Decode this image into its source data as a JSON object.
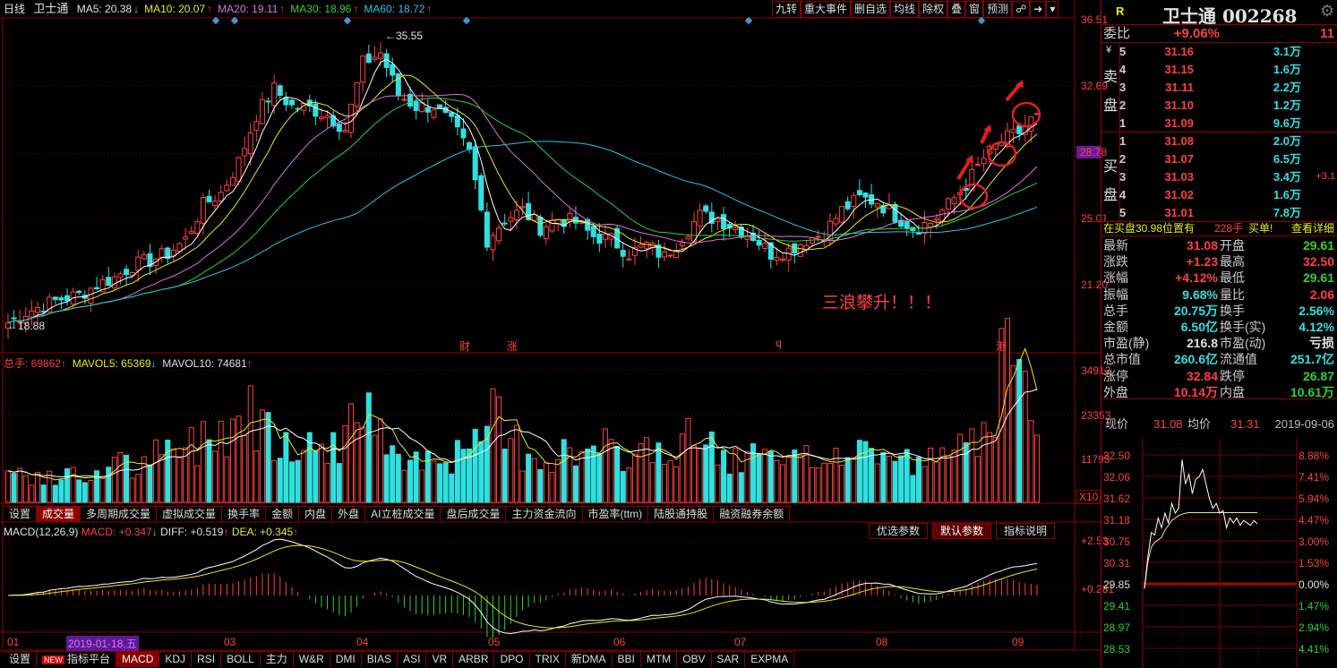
{
  "header": {
    "period": "日线",
    "stock_name": "卫士通",
    "ma": [
      {
        "label": "MA5: 20.38",
        "trend": "down",
        "color": "#e0e0e0"
      },
      {
        "label": "MA10: 20.07",
        "trend": "up",
        "color": "#e8e820"
      },
      {
        "label": "MA20: 19.11",
        "trend": "up",
        "color": "#e070e0"
      },
      {
        "label": "MA30: 18.96",
        "trend": "up",
        "color": "#30d030"
      },
      {
        "label": "MA60: 18.72",
        "trend": "up",
        "color": "#30c0e0"
      }
    ],
    "toolbar": [
      "九转",
      "重大事件",
      "删自选",
      "均线",
      "除权",
      "叠",
      "窗",
      "预测"
    ]
  },
  "main_chart": {
    "price_axis": [
      "36.51",
      "32.69",
      "28.78",
      "25.01",
      "21.20"
    ],
    "current_price_tag": "28.78",
    "high_label": "35.55",
    "low_label": "18.88",
    "annotation": "三浪攀升！！！",
    "event_markers": [
      "财",
      "涨",
      "q",
      "港"
    ],
    "date_axis": [
      "01",
      "2019-01-18,五",
      "03",
      "04",
      "05",
      "06",
      "07",
      "08",
      "09"
    ],
    "closes": [
      19.0,
      19.6,
      20.0,
      20.4,
      20.6,
      21.2,
      21.6,
      22.3,
      22.6,
      23.0,
      23.8,
      25.8,
      26.5,
      28.3,
      31.0,
      32.5,
      31.5,
      31.4,
      31.0,
      30.2,
      34.0,
      34.6,
      32.2,
      31.5,
      31.5,
      30.5,
      28.8,
      23.8,
      25.0,
      25.5,
      24.5,
      25.0,
      24.8,
      24.0,
      23.8,
      23.0,
      23.5,
      22.8,
      24.0,
      25.2,
      25.0,
      24.5,
      24.0,
      23.0,
      23.2,
      23.8,
      24.2,
      25.5,
      26.2,
      26.0,
      25.2,
      24.5,
      24.8,
      25.8,
      27.0,
      28.5,
      29.5,
      30.0,
      31.08
    ],
    "colors": {
      "up": "#ff4040",
      "down": "#30e0e0",
      "ma5": "#ffffff",
      "ma10": "#e8e820",
      "ma20": "#e070e0",
      "ma30": "#30d030",
      "ma60": "#30c0e0"
    }
  },
  "volume": {
    "total_label": "总手: 69862",
    "mavol5_label": "MAVOL5: 65369",
    "mavol10_label": "MAVOL10: 74681",
    "axis": [
      "34912",
      "23353",
      "11795"
    ],
    "unit": "X10",
    "tabs": [
      "设置",
      "成交量",
      "多周期成交量",
      "虚拟成交量",
      "换手率",
      "金额",
      "内盘",
      "外盘",
      "AI立桩成交量",
      "盘后成交量",
      "主力资金流向",
      "市盈率(ttm)",
      "陆股通持股",
      "融资融券余额"
    ],
    "levels": [
      8,
      7,
      6,
      7,
      6,
      9,
      10,
      9,
      12,
      13,
      15,
      17,
      20,
      24,
      22,
      18,
      16,
      14,
      15,
      22,
      21,
      17,
      14,
      12,
      13,
      12,
      14,
      22,
      16,
      13,
      12,
      13,
      12,
      14,
      12,
      13,
      15,
      12,
      16,
      15,
      12,
      11,
      12,
      10,
      10,
      11,
      13,
      12,
      14,
      13,
      11,
      10,
      11,
      14,
      20,
      28,
      35,
      27,
      24
    ]
  },
  "macd": {
    "title": "MACD(12,26,9)",
    "macd_label": "MACD: +0.347",
    "diff_label": "DIFF: +0.519",
    "dea_label": "DEA: +0.345",
    "axis": [
      "+2.53",
      "+0.281"
    ],
    "buttons": [
      "优选参数",
      "默认参数",
      "指标说明"
    ],
    "selected_button": "默认参数"
  },
  "indicator_tabs": {
    "settings": "设置",
    "new_badge": "NEW",
    "platform": "指标平台",
    "items": [
      "MACD",
      "KDJ",
      "RSI",
      "BOLL",
      "主力",
      "W&R",
      "DMI",
      "BIAS",
      "ASI",
      "VR",
      "ARBR",
      "DPO",
      "TRIX",
      "新DMA",
      "BBI",
      "MTM",
      "OBV",
      "SAR",
      "EXPMA"
    ],
    "selected": "MACD"
  },
  "quote": {
    "r_label": "R",
    "title": "卫士通 002268",
    "weibi_label": "委比",
    "weibi": "+9.06%",
    "weicha": "11",
    "sell_label": [
      "¥",
      "卖",
      "盘"
    ],
    "buy_label": [
      "买",
      "盘"
    ],
    "sell": [
      {
        "n": "5",
        "price": "31.16",
        "vol": "3.1万"
      },
      {
        "n": "4",
        "price": "31.15",
        "vol": "1.6万"
      },
      {
        "n": "3",
        "price": "31.11",
        "vol": "2.2万"
      },
      {
        "n": "2",
        "price": "31.10",
        "vol": "1.2万"
      },
      {
        "n": "1",
        "price": "31.09",
        "vol": "9.6万"
      }
    ],
    "buy": [
      {
        "n": "1",
        "price": "31.08",
        "vol": "2.0万",
        "chg": ""
      },
      {
        "n": "2",
        "price": "31.07",
        "vol": "6.5万",
        "chg": ""
      },
      {
        "n": "3",
        "price": "31.03",
        "vol": "3.4万",
        "chg": "+3.1"
      },
      {
        "n": "4",
        "price": "31.02",
        "vol": "1.6万",
        "chg": ""
      },
      {
        "n": "5",
        "price": "31.01",
        "vol": "7.8万",
        "chg": ""
      }
    ],
    "notice": {
      "text": "在买盘30.98位置有",
      "qty": "228手",
      "type": "买单!",
      "link": "查看详细"
    },
    "stats": [
      {
        "k1": "最新",
        "v1": "31.08",
        "c1": "up",
        "k2": "开盘",
        "v2": "29.61",
        "c2": "grn"
      },
      {
        "k1": "涨跌",
        "v1": "+1.23",
        "c1": "up",
        "k2": "最高",
        "v2": "32.50",
        "c2": "up"
      },
      {
        "k1": "涨幅",
        "v1": "+4.12%",
        "c1": "up",
        "k2": "最低",
        "v2": "29.61",
        "c2": "grn"
      },
      {
        "k1": "振幅",
        "v1": "9.68%",
        "c1": "dn",
        "k2": "量比",
        "v2": "2.06",
        "c2": "up"
      },
      {
        "k1": "总手",
        "v1": "20.75万",
        "c1": "dn",
        "k2": "换手",
        "v2": "2.56%",
        "c2": "dn"
      },
      {
        "k1": "金额",
        "v1": "6.50亿",
        "c1": "dn",
        "k2": "换手(实)",
        "v2": "4.12%",
        "c2": "dn"
      },
      {
        "k1": "市盈(静)",
        "v1": "216.8",
        "c1": "wht",
        "k2": "市盈(动)",
        "v2": "亏损",
        "c2": "wht"
      },
      {
        "k1": "总市值",
        "v1": "260.6亿",
        "c1": "dn",
        "k2": "流通值",
        "v2": "251.7亿",
        "c2": "dn"
      },
      {
        "k1": "涨停",
        "v1": "32.84",
        "c1": "up",
        "k2": "跌停",
        "v2": "26.87",
        "c2": "grn"
      },
      {
        "k1": "外盘",
        "v1": "10.14万",
        "c1": "up",
        "k2": "内盘",
        "v2": "10.61万",
        "c2": "grn"
      }
    ],
    "intraday_header": {
      "now_label": "现价",
      "now": "31.08",
      "avg_label": "均价",
      "avg": "31.31",
      "date": "2019-09-06"
    }
  },
  "intraday": {
    "price_axis": [
      "32.50",
      "32.06",
      "31.62",
      "31.18",
      "30.75",
      "30.31",
      "29.85",
      "29.41",
      "28.97",
      "28.53"
    ],
    "pct_axis": [
      "8.88%",
      "7.41%",
      "5.94%",
      "4.47%",
      "3.00%",
      "1.53%",
      "0.00%",
      "1.47%",
      "2.94%",
      "4.41%"
    ],
    "prices": [
      29.75,
      30.4,
      30.9,
      30.85,
      31.2,
      31.0,
      31.3,
      31.1,
      31.5,
      31.3,
      31.4,
      32.4,
      31.9,
      32.1,
      31.7,
      32.0,
      32.05,
      32.2,
      31.9,
      31.6,
      31.4,
      31.5,
      31.3,
      31.35,
      31.0,
      31.2,
      31.1,
      31.2,
      31.05,
      31.15,
      31.1,
      31.05,
      31.15,
      31.08
    ],
    "avg": [
      29.75,
      30.3,
      30.6,
      30.7,
      30.75,
      30.8,
      30.95,
      31.05,
      31.15,
      31.2,
      31.25,
      31.28,
      31.3,
      31.31,
      31.31,
      31.31,
      31.31,
      31.31,
      31.31,
      31.31,
      31.31,
      31.31,
      31.31,
      31.31,
      31.31,
      31.31,
      31.31,
      31.31,
      31.31,
      31.31,
      31.31,
      31.31,
      31.31,
      31.31
    ]
  }
}
